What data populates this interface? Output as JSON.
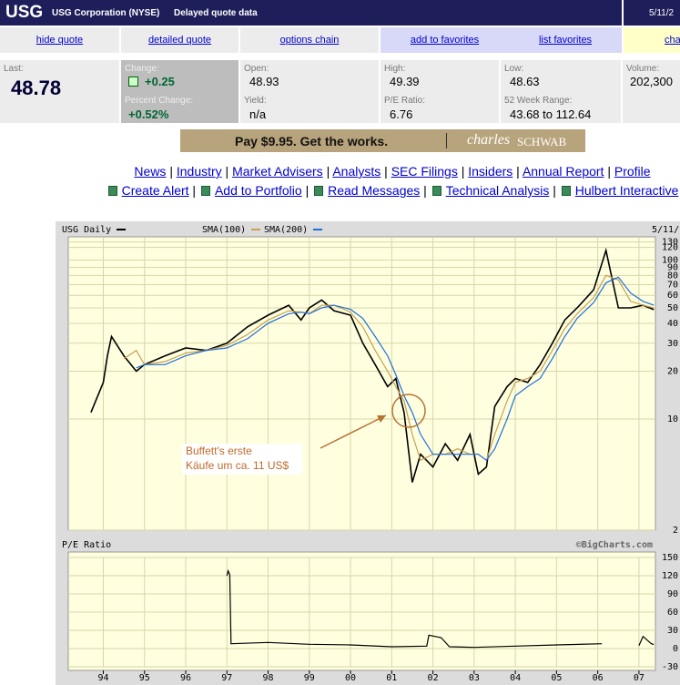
{
  "header": {
    "ticker": "USG",
    "company": "USG Corporation (NYSE)",
    "note": "Delayed quote data",
    "date": "5/11/2"
  },
  "nav": [
    "hide quote",
    "detailed quote",
    "options chain",
    "add to favorites",
    "list favorites",
    "cha"
  ],
  "quote": {
    "last": {
      "label": "Last:",
      "value": "48.78"
    },
    "change": {
      "label": "Change:",
      "value": "+0.25"
    },
    "percent_change": {
      "label": "Percent Change:",
      "value": "+0.52%"
    },
    "open": {
      "label": "Open:",
      "value": "48.93"
    },
    "yield": {
      "label": "Yield:",
      "value": "n/a"
    },
    "high": {
      "label": "High:",
      "value": "49.39"
    },
    "pe_ratio": {
      "label": "P/E Ratio:",
      "value": "6.76"
    },
    "low": {
      "label": "Low:",
      "value": "48.63"
    },
    "week52_range": {
      "label": "52 Week Range:",
      "value": "43.68 to 112.64"
    },
    "volume": {
      "label": "Volume:",
      "value": "202,300"
    }
  },
  "ad": {
    "text": "Pay $9.95. Get the works.",
    "brand_script": "charles",
    "brand": "SCHWAB"
  },
  "links": [
    [
      "News",
      "Industry",
      "Market Advisers",
      "Analysts",
      "SEC Filings",
      "Insiders",
      "Annual Report",
      "Profile"
    ],
    [
      "Create Alert",
      "Add to Portfolio",
      "Read Messages",
      "Technical Analysis",
      "Hulbert Interactive"
    ]
  ],
  "chart_data": [
    {
      "type": "line",
      "title": "USG Daily",
      "date": "5/11/",
      "log_y": true,
      "grid": true,
      "xlim": [
        1993.15,
        2007.4
      ],
      "ylim": [
        2,
        140
      ],
      "yticks": [
        2,
        10,
        20,
        30,
        40,
        50,
        60,
        70,
        80,
        90,
        100,
        120,
        130
      ],
      "x": [
        1993.7,
        1994.0,
        1994.1,
        1994.2,
        1994.5,
        1994.8,
        1995.0,
        1995.5,
        1996.0,
        1996.5,
        1997.0,
        1997.5,
        1998.0,
        1998.5,
        1998.8,
        1999.0,
        1999.3,
        1999.6,
        2000.0,
        2000.3,
        2000.6,
        2000.9,
        2001.1,
        2001.3,
        2001.5,
        2001.7,
        2002.0,
        2002.3,
        2002.6,
        2002.9,
        2003.1,
        2003.3,
        2003.5,
        2003.8,
        2004.0,
        2004.3,
        2004.6,
        2004.9,
        2005.2,
        2005.5,
        2005.9,
        2006.2,
        2006.5,
        2006.8,
        2007.1,
        2007.36
      ],
      "series": [
        {
          "name": "USG Daily",
          "color": "#000000",
          "values": [
            11,
            17,
            25,
            33,
            25,
            20,
            22,
            25,
            28,
            27,
            30,
            38,
            45,
            52,
            42,
            50,
            56,
            48,
            45,
            30,
            22,
            16,
            18,
            11,
            4,
            6,
            5,
            7,
            5.5,
            8,
            4.5,
            5,
            12,
            16,
            18,
            17,
            22,
            30,
            42,
            50,
            65,
            115,
            50,
            50,
            52,
            48.78
          ]
        },
        {
          "name": "SMA(100)",
          "color": "#c8a050",
          "values": [
            null,
            null,
            null,
            null,
            24,
            27,
            22,
            23,
            26,
            27,
            29,
            34,
            42,
            48,
            47,
            46,
            52,
            52,
            47,
            38,
            27,
            20,
            16,
            13,
            8,
            5.5,
            6,
            6,
            6.5,
            6,
            6,
            5.5,
            8,
            13,
            17,
            18,
            20,
            27,
            37,
            46,
            58,
            80,
            75,
            55,
            52,
            50
          ]
        },
        {
          "name": "SMA(200)",
          "color": "#1e6fd9",
          "values": [
            null,
            null,
            null,
            null,
            null,
            21,
            22,
            22,
            25,
            27,
            28,
            32,
            40,
            46,
            47,
            46,
            50,
            52,
            49,
            43,
            33,
            25,
            19,
            14,
            11,
            8,
            6,
            6,
            6,
            6,
            6,
            5.5,
            6.5,
            10,
            14,
            16,
            18,
            24,
            33,
            43,
            54,
            72,
            78,
            62,
            55,
            52
          ]
        }
      ],
      "annotation": [
        "Buffett's erste",
        "Käufe um ca. 11 US$"
      ]
    },
    {
      "type": "line",
      "title": "P/E Ratio",
      "credit": "©BigCharts.com",
      "grid": true,
      "xlim": [
        1993.15,
        2007.4
      ],
      "ylim": [
        -30,
        150
      ],
      "yticks": [
        -30,
        0,
        30,
        60,
        90,
        120,
        150
      ],
      "xticks": [
        {
          "value": 1994,
          "label": "94"
        },
        {
          "value": 1995,
          "label": "95"
        },
        {
          "value": 1996,
          "label": "96"
        },
        {
          "value": 1997,
          "label": "97"
        },
        {
          "value": 1998,
          "label": "98"
        },
        {
          "value": 1999,
          "label": "99"
        },
        {
          "value": 2000,
          "label": "00"
        },
        {
          "value": 2001,
          "label": "01"
        },
        {
          "value": 2002,
          "label": "02"
        },
        {
          "value": 2003,
          "label": "03"
        },
        {
          "value": 2004,
          "label": "04"
        },
        {
          "value": 2005,
          "label": "05"
        },
        {
          "value": 2006,
          "label": "06"
        },
        {
          "value": 2007,
          "label": "07"
        }
      ],
      "x": [
        1997.0,
        1997.03,
        1997.07,
        1997.1,
        1998.0,
        1999.0,
        2000.0,
        2001.0,
        2001.85,
        2001.9,
        2002.2,
        2002.4,
        2003.0,
        2004.0,
        2005.0,
        2006.1,
        2006.5,
        2007.0,
        2007.1,
        2007.3,
        2007.36
      ],
      "color": "#000000",
      "values": [
        120,
        128,
        122,
        8,
        10,
        7,
        6,
        3,
        4,
        22,
        18,
        3,
        2,
        4,
        6,
        8,
        null,
        5,
        20,
        8,
        6.76
      ]
    }
  ]
}
